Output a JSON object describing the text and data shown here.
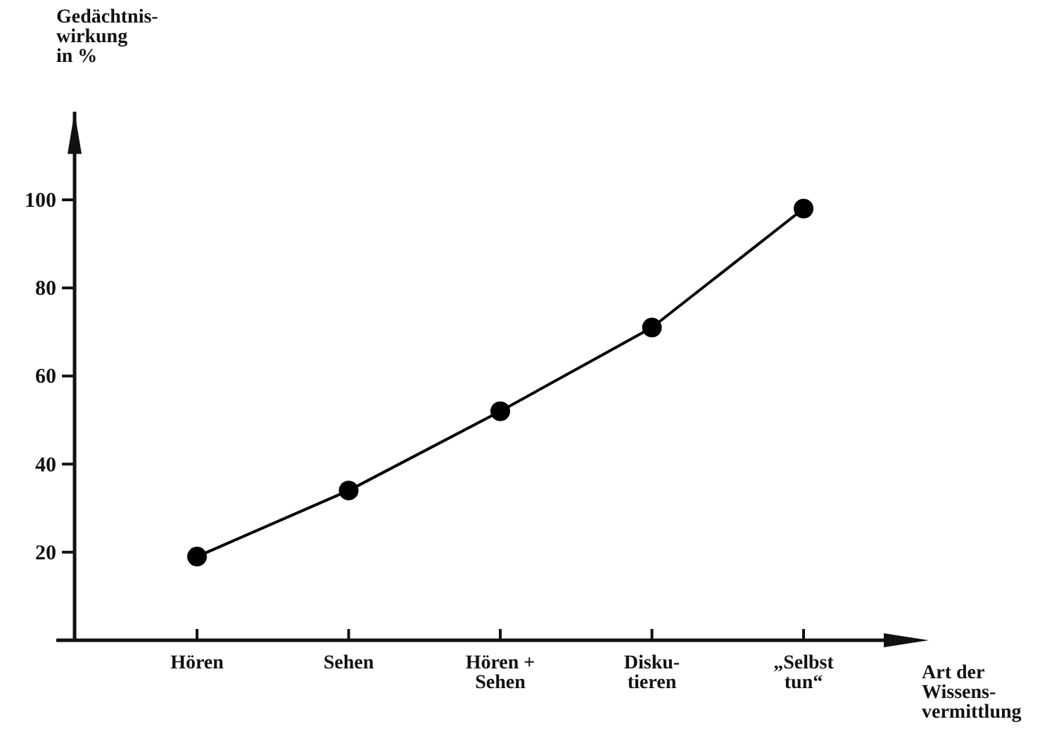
{
  "chart_data": {
    "type": "line",
    "categories": [
      "Hören",
      "Sehen",
      "Hören +\nSehen",
      "Disku-\ntieren",
      "„Selbst\ntun“"
    ],
    "values": [
      19,
      34,
      52,
      71,
      98
    ],
    "color": "#000000",
    "marker": "circle",
    "line_style": "solid",
    "ylabel": "Gedächtnis-\nwirkung\nin %",
    "xlabel": "Art der\nWissens-\nvermittlung",
    "ylim": [
      0,
      120
    ],
    "yticks": [
      20,
      40,
      60,
      80,
      100
    ],
    "grid": false
  }
}
